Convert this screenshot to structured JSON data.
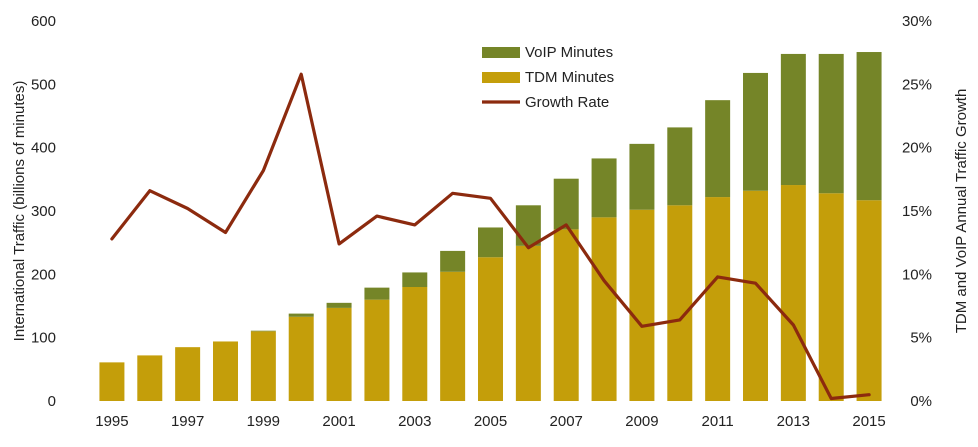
{
  "chart_data": {
    "type": "bar",
    "stacked": true,
    "title": "",
    "xlabel": "",
    "ylabel": "International Traffic (billions of minutes)",
    "y2label": "TDM and VoIP Annual Traffic Growth",
    "ylim": [
      0,
      600
    ],
    "y2lim": [
      0,
      0.3
    ],
    "yticks": [
      "0",
      "100",
      "200",
      "300",
      "400",
      "500",
      "600"
    ],
    "y2ticks": [
      "0%",
      "5%",
      "10%",
      "15%",
      "20%",
      "25%",
      "30%"
    ],
    "categories": [
      "1995",
      "1996",
      "1997",
      "1998",
      "1999",
      "2000",
      "2001",
      "2002",
      "2003",
      "2004",
      "2005",
      "2006",
      "2007",
      "2008",
      "2009",
      "2010",
      "2011",
      "2012",
      "2013",
      "2014",
      "2015"
    ],
    "xtick_labels": [
      "1995",
      "",
      "1997",
      "",
      "1999",
      "",
      "2001",
      "",
      "2003",
      "",
      "2005",
      "",
      "2007",
      "",
      "2009",
      "",
      "2011",
      "",
      "2013",
      "",
      "2015"
    ],
    "grid": false,
    "legend_position": "top-center",
    "series": [
      {
        "name": "TDM Minutes",
        "kind": "bar",
        "axis": "left",
        "color": "#C49E0A",
        "values": [
          61,
          72,
          85,
          94,
          110,
          133,
          147,
          160,
          180,
          204,
          227,
          245,
          271,
          290,
          302,
          309,
          322,
          332,
          341,
          328,
          317
        ]
      },
      {
        "name": "VoIP Minutes",
        "kind": "bar",
        "axis": "left",
        "color": "#758528",
        "values": [
          0,
          0,
          0,
          0,
          1,
          5,
          8,
          19,
          23,
          33,
          47,
          64,
          80,
          93,
          104,
          123,
          153,
          186,
          207,
          220,
          234
        ]
      },
      {
        "name": "Growth Rate",
        "kind": "line",
        "axis": "right",
        "color": "#8C2A0E",
        "values": [
          0.128,
          0.166,
          0.152,
          0.133,
          0.182,
          0.258,
          0.124,
          0.146,
          0.139,
          0.164,
          0.16,
          0.121,
          0.139,
          0.095,
          0.059,
          0.064,
          0.098,
          0.093,
          0.06,
          0.002,
          0.005
        ]
      }
    ],
    "legend_order": [
      "VoIP Minutes",
      "TDM Minutes",
      "Growth Rate"
    ]
  }
}
